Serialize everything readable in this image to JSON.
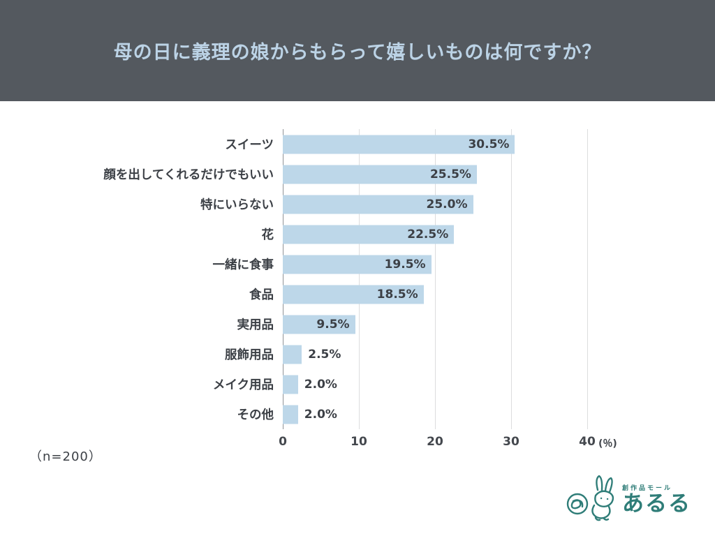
{
  "header": {
    "title": "母の日に義理の娘からもらって嬉しいものは何ですか？"
  },
  "chart_data": {
    "type": "bar",
    "orientation": "horizontal",
    "title": "母の日に義理の娘からもらって嬉しいものは何ですか？",
    "categories": [
      "スイーツ",
      "顔を出してくれるだけでもいい",
      "特にいらない",
      "花",
      "一緒に食事",
      "食品",
      "実用品",
      "服飾用品",
      "メイク用品",
      "その他"
    ],
    "values": [
      30.5,
      25.5,
      25.0,
      22.5,
      19.5,
      18.5,
      9.5,
      2.5,
      2.0,
      2.0
    ],
    "value_labels": [
      "30.5%",
      "25.5%",
      "25.0%",
      "22.5%",
      "19.5%",
      "18.5%",
      "9.5%",
      "2.5%",
      "2.0%",
      "2.0%"
    ],
    "x_ticks": [
      0,
      10,
      20,
      30,
      40
    ],
    "x_unit": "(％)",
    "xlim": [
      0,
      40
    ],
    "grid": true,
    "legend": false,
    "sample_note": "（n=200）"
  },
  "footnote": {
    "text": "（n=200）"
  },
  "logo": {
    "tagline": "創作品モール",
    "name": "あるる"
  },
  "colors": {
    "header_bg": "#54595F",
    "title_color": "#BCD3E6",
    "bar": "#BDD7E9",
    "logo_color": "#2F7D78"
  }
}
